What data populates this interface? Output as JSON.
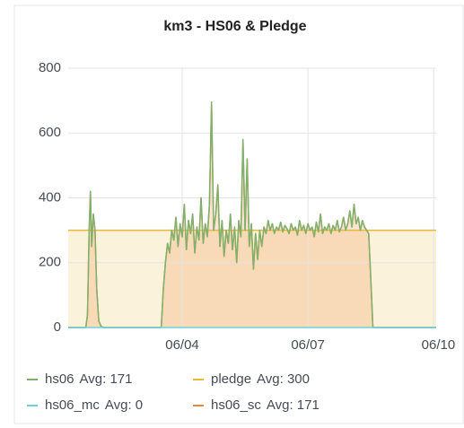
{
  "chart_data": {
    "type": "line",
    "title": "km3 - HS06 & Pledge",
    "x": [
      1.28,
      1.7,
      1.74,
      1.78,
      1.81,
      1.84,
      1.88,
      1.92,
      1.96,
      2.01,
      2.06,
      2.11,
      3.5,
      3.55,
      3.6,
      3.65,
      3.7,
      3.75,
      3.8,
      3.85,
      3.9,
      3.95,
      4.0,
      4.05,
      4.1,
      4.15,
      4.2,
      4.25,
      4.3,
      4.35,
      4.4,
      4.45,
      4.5,
      4.55,
      4.6,
      4.65,
      4.7,
      4.75,
      4.8,
      4.85,
      4.9,
      4.95,
      5.0,
      5.05,
      5.1,
      5.15,
      5.2,
      5.25,
      5.3,
      5.35,
      5.4,
      5.45,
      5.5,
      5.55,
      5.6,
      5.65,
      5.7,
      5.75,
      5.8,
      5.85,
      5.9,
      5.95,
      6.0,
      6.05,
      6.1,
      6.15,
      6.2,
      6.25,
      6.3,
      6.35,
      6.4,
      6.45,
      6.5,
      6.55,
      6.6,
      6.65,
      6.7,
      6.75,
      6.8,
      6.85,
      6.9,
      6.95,
      7.0,
      7.05,
      7.1,
      7.15,
      7.2,
      7.25,
      7.3,
      7.35,
      7.4,
      7.45,
      7.5,
      7.55,
      7.6,
      7.65,
      7.7,
      7.75,
      7.8,
      7.85,
      7.9,
      7.95,
      8.0,
      8.05,
      8.1,
      8.15,
      8.2,
      8.25,
      8.3,
      8.35,
      8.4,
      8.45,
      8.5,
      8.55,
      10.06
    ],
    "series": [
      {
        "name": "hs06",
        "legend_avg": "Avg: 171",
        "color": "#7eb26d",
        "values": [
          0,
          0,
          40,
          300,
          420,
          250,
          350,
          300,
          120,
          20,
          5,
          0,
          0,
          120,
          200,
          260,
          230,
          300,
          270,
          340,
          250,
          320,
          280,
          380,
          240,
          330,
          290,
          350,
          230,
          310,
          270,
          400,
          260,
          320,
          280,
          380,
          695,
          300,
          350,
          440,
          250,
          330,
          220,
          300,
          260,
          350,
          240,
          310,
          200,
          330,
          280,
          580,
          300,
          520,
          250,
          320,
          180,
          290,
          210,
          300,
          250,
          310,
          290,
          330,
          300,
          320,
          290,
          310,
          300,
          325,
          295,
          315,
          305,
          290,
          320,
          300,
          310,
          285,
          330,
          300,
          315,
          290,
          320,
          300,
          310,
          280,
          325,
          295,
          350,
          290,
          310,
          300,
          320,
          290,
          315,
          300,
          330,
          295,
          310,
          340,
          300,
          320,
          360,
          310,
          380,
          320,
          340,
          300,
          330,
          310,
          300,
          290,
          150,
          0,
          0
        ]
      },
      {
        "name": "pledge",
        "legend_avg": "Avg: 300",
        "color": "#eab839",
        "fill": true,
        "x": [
          1.28,
          10.06
        ],
        "values": [
          300,
          300
        ]
      },
      {
        "name": "hs06_mc",
        "legend_avg": "Avg: 0",
        "color": "#6ed0e0",
        "x": [
          1.28,
          10.06
        ],
        "values": [
          0,
          0
        ]
      },
      {
        "name": "hs06_sc",
        "legend_avg": "Avg: 171",
        "color": "#ef843c",
        "fill": true,
        "values": [
          0,
          0,
          40,
          300,
          420,
          250,
          350,
          300,
          120,
          20,
          5,
          0,
          0,
          120,
          200,
          260,
          230,
          300,
          270,
          340,
          250,
          320,
          280,
          380,
          240,
          330,
          290,
          350,
          230,
          310,
          270,
          400,
          260,
          320,
          280,
          380,
          695,
          300,
          350,
          440,
          250,
          330,
          220,
          300,
          260,
          350,
          240,
          310,
          200,
          330,
          280,
          580,
          300,
          520,
          250,
          320,
          180,
          290,
          210,
          300,
          250,
          310,
          290,
          330,
          300,
          320,
          290,
          310,
          300,
          325,
          295,
          315,
          305,
          290,
          320,
          300,
          310,
          285,
          330,
          300,
          315,
          290,
          320,
          300,
          310,
          280,
          325,
          295,
          350,
          290,
          310,
          300,
          320,
          290,
          315,
          300,
          330,
          295,
          310,
          340,
          300,
          320,
          360,
          310,
          380,
          320,
          340,
          300,
          330,
          310,
          300,
          290,
          150,
          0,
          0
        ]
      }
    ],
    "xlim": [
      1.28,
      10.06
    ],
    "xticks": [
      {
        "value": 4,
        "label": "06/04"
      },
      {
        "value": 7,
        "label": "06/07"
      },
      {
        "value": 10,
        "label": "06/10"
      }
    ],
    "ylim": [
      0,
      800
    ],
    "yticks": [
      0,
      200,
      400,
      600,
      800
    ],
    "grid": true
  }
}
